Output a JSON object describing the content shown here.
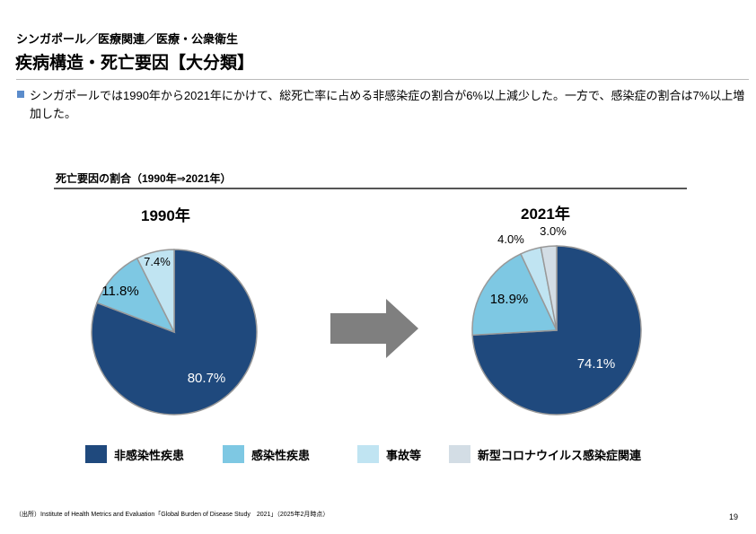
{
  "header": {
    "breadcrumb": "シンガポール／医療関連／医療・公衆衛生",
    "title": "疾病構造・死亡要因【大分類】"
  },
  "description": "シンガポールでは1990年から2021年にかけて、総死亡率に占める非感染症の割合が6%以上減少した。一方で、感染症の割合は7%以上増加した。",
  "colors": {
    "bullet": "#5b8ccb",
    "arrow": "#7f7f7f"
  },
  "chart_data": [
    {
      "type": "pie",
      "title": "1990年",
      "subtitle": "死亡要因の割合（1990年⇒2021年）",
      "categories": [
        "非感染性疾患",
        "感染性疾患",
        "事故等"
      ],
      "values": [
        80.7,
        11.8,
        7.4
      ],
      "labels": [
        "80.7%",
        "11.8%",
        "7.4%"
      ],
      "colors": [
        "#1f497d",
        "#7ec8e3",
        "#c0e4f2"
      ]
    },
    {
      "type": "pie",
      "title": "2021年",
      "categories": [
        "非感染性疾患",
        "感染性疾患",
        "事故等",
        "新型コロナウイルス感染症関連"
      ],
      "values": [
        74.1,
        18.9,
        4.0,
        3.0
      ],
      "labels": [
        "74.1%",
        "18.9%",
        "4.0%",
        "3.0%"
      ],
      "colors": [
        "#1f497d",
        "#7ec8e3",
        "#c0e4f2",
        "#d3dde5"
      ]
    }
  ],
  "legend": [
    {
      "label": "非感染性疾患",
      "color": "#1f497d"
    },
    {
      "label": "感染性疾患",
      "color": "#7ec8e3"
    },
    {
      "label": "事故等",
      "color": "#c0e4f2"
    },
    {
      "label": "新型コロナウイルス感染症関連",
      "color": "#d3dde5"
    }
  ],
  "footer": {
    "source": "（出所）Institute of Health Metrics and Evaluation「Global Burden of Disease Study　2021」（2025年2月時点）",
    "page": "19"
  }
}
